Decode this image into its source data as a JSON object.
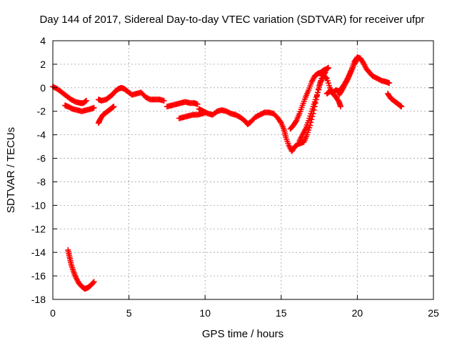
{
  "chart_data": {
    "type": "scatter",
    "title": "Day 144 of 2017, Sidereal Day-to-day VTEC variation (SDTVAR) for receiver ufpr",
    "xlabel": "GPS time / hours",
    "ylabel": "SDTVAR / TECUs",
    "xlim": [
      0,
      25
    ],
    "ylim": [
      -18,
      4
    ],
    "xticks": [
      0,
      5,
      10,
      15,
      20,
      25
    ],
    "yticks": [
      -18,
      -16,
      -14,
      -12,
      -10,
      -8,
      -6,
      -4,
      -2,
      0,
      2,
      4
    ],
    "grid": true,
    "marker": "+",
    "color": "#ff0000",
    "series": [
      {
        "name": "s1",
        "points": [
          [
            0.0,
            0.1
          ],
          [
            0.3,
            -0.1
          ],
          [
            0.6,
            -0.4
          ],
          [
            0.9,
            -0.7
          ],
          [
            1.2,
            -1.0
          ],
          [
            1.5,
            -1.2
          ],
          [
            1.8,
            -1.3
          ],
          [
            2.0,
            -1.3
          ],
          [
            2.2,
            -1.1
          ]
        ]
      },
      {
        "name": "s2",
        "points": [
          [
            0.8,
            -1.5
          ],
          [
            1.0,
            -1.6
          ],
          [
            1.3,
            -1.8
          ],
          [
            1.6,
            -1.9
          ],
          [
            1.9,
            -2.0
          ],
          [
            2.2,
            -1.9
          ],
          [
            2.5,
            -1.8
          ],
          [
            2.7,
            -1.7
          ]
        ]
      },
      {
        "name": "s3",
        "points": [
          [
            1.0,
            -13.8
          ],
          [
            1.1,
            -14.4
          ],
          [
            1.2,
            -15.0
          ],
          [
            1.35,
            -15.6
          ],
          [
            1.5,
            -16.1
          ],
          [
            1.7,
            -16.6
          ],
          [
            1.9,
            -16.9
          ],
          [
            2.1,
            -17.1
          ],
          [
            2.3,
            -17.0
          ],
          [
            2.5,
            -16.8
          ],
          [
            2.7,
            -16.5
          ]
        ]
      },
      {
        "name": "s4",
        "points": [
          [
            3.0,
            -3.0
          ],
          [
            3.1,
            -2.7
          ],
          [
            3.3,
            -2.3
          ],
          [
            3.5,
            -2.1
          ],
          [
            3.7,
            -1.9
          ],
          [
            3.9,
            -1.7
          ],
          [
            4.0,
            -1.6
          ]
        ]
      },
      {
        "name": "s5",
        "points": [
          [
            3.0,
            -1.0
          ],
          [
            3.2,
            -1.1
          ],
          [
            3.5,
            -1.0
          ],
          [
            3.7,
            -0.8
          ],
          [
            3.9,
            -0.6
          ],
          [
            4.1,
            -0.3
          ],
          [
            4.3,
            -0.1
          ],
          [
            4.5,
            0.0
          ],
          [
            4.7,
            -0.1
          ],
          [
            4.9,
            -0.3
          ],
          [
            5.2,
            -0.6
          ],
          [
            5.5,
            -0.5
          ],
          [
            5.8,
            -0.4
          ],
          [
            6.1,
            -0.8
          ],
          [
            6.4,
            -1.0
          ],
          [
            6.7,
            -1.0
          ],
          [
            7.0,
            -1.0
          ],
          [
            7.3,
            -1.1
          ]
        ]
      },
      {
        "name": "s6",
        "points": [
          [
            7.5,
            -1.6
          ],
          [
            7.8,
            -1.5
          ],
          [
            8.1,
            -1.4
          ],
          [
            8.4,
            -1.3
          ],
          [
            8.7,
            -1.2
          ],
          [
            9.0,
            -1.3
          ],
          [
            9.3,
            -1.3
          ],
          [
            9.5,
            -1.4
          ]
        ]
      },
      {
        "name": "s7",
        "points": [
          [
            8.3,
            -2.6
          ],
          [
            8.6,
            -2.5
          ],
          [
            8.9,
            -2.4
          ],
          [
            9.2,
            -2.3
          ],
          [
            9.5,
            -2.3
          ],
          [
            9.8,
            -2.2
          ],
          [
            10.0,
            -2.1
          ]
        ]
      },
      {
        "name": "s8",
        "points": [
          [
            9.6,
            -1.8
          ],
          [
            9.9,
            -2.0
          ],
          [
            10.2,
            -2.2
          ],
          [
            10.5,
            -2.3
          ],
          [
            10.8,
            -2.0
          ],
          [
            11.1,
            -1.9
          ],
          [
            11.4,
            -2.0
          ],
          [
            11.7,
            -2.2
          ],
          [
            12.0,
            -2.3
          ],
          [
            12.3,
            -2.5
          ],
          [
            12.6,
            -2.8
          ],
          [
            12.8,
            -3.1
          ],
          [
            13.0,
            -2.9
          ],
          [
            13.3,
            -2.5
          ],
          [
            13.6,
            -2.3
          ],
          [
            13.9,
            -2.1
          ],
          [
            14.2,
            -2.1
          ],
          [
            14.5,
            -2.2
          ],
          [
            14.8,
            -2.6
          ],
          [
            15.0,
            -3.0
          ],
          [
            15.2,
            -3.6
          ],
          [
            15.3,
            -4.2
          ],
          [
            15.5,
            -4.9
          ],
          [
            15.7,
            -5.4
          ],
          [
            15.9,
            -5.0
          ],
          [
            16.1,
            -4.8
          ],
          [
            16.3,
            -4.7
          ],
          [
            16.5,
            -4.6
          ],
          [
            16.7,
            -4.0
          ],
          [
            16.9,
            -3.2
          ],
          [
            17.1,
            -2.2
          ],
          [
            17.3,
            -1.0
          ],
          [
            17.5,
            0.2
          ],
          [
            17.7,
            1.0
          ],
          [
            17.9,
            1.3
          ]
        ]
      },
      {
        "name": "s9",
        "points": [
          [
            15.6,
            -3.5
          ],
          [
            15.8,
            -3.2
          ],
          [
            16.0,
            -2.8
          ],
          [
            16.2,
            -2.2
          ],
          [
            16.4,
            -1.5
          ],
          [
            16.6,
            -0.8
          ],
          [
            16.8,
            -0.2
          ],
          [
            17.0,
            0.5
          ],
          [
            17.2,
            1.0
          ],
          [
            17.4,
            1.2
          ],
          [
            17.6,
            1.3
          ],
          [
            17.8,
            1.5
          ],
          [
            18.0,
            1.6
          ],
          [
            18.1,
            1.7
          ]
        ]
      },
      {
        "name": "s10",
        "points": [
          [
            16.2,
            -4.5
          ],
          [
            16.4,
            -4.0
          ],
          [
            16.6,
            -3.5
          ],
          [
            16.8,
            -2.8
          ],
          [
            17.0,
            -2.0
          ],
          [
            17.2,
            -1.2
          ],
          [
            17.4,
            -0.4
          ],
          [
            17.6,
            0.5
          ],
          [
            17.8,
            1.0
          ],
          [
            18.0,
            0.8
          ],
          [
            18.2,
            0.0
          ],
          [
            18.4,
            -0.5
          ],
          [
            18.6,
            -0.8
          ],
          [
            18.8,
            -1.2
          ],
          [
            18.9,
            -1.6
          ]
        ]
      },
      {
        "name": "s11",
        "points": [
          [
            18.0,
            -0.5
          ],
          [
            18.2,
            -0.3
          ],
          [
            18.4,
            -0.4
          ],
          [
            18.6,
            -0.2
          ],
          [
            18.8,
            -0.3
          ],
          [
            19.0,
            0.0
          ],
          [
            19.2,
            0.4
          ],
          [
            19.4,
            0.9
          ],
          [
            19.6,
            1.5
          ],
          [
            19.8,
            2.2
          ],
          [
            20.0,
            2.6
          ],
          [
            20.2,
            2.5
          ],
          [
            20.4,
            2.1
          ],
          [
            20.6,
            1.6
          ],
          [
            20.8,
            1.3
          ],
          [
            21.0,
            1.0
          ],
          [
            21.3,
            0.8
          ],
          [
            21.6,
            0.6
          ],
          [
            21.9,
            0.5
          ],
          [
            22.1,
            0.4
          ]
        ]
      },
      {
        "name": "s12",
        "points": [
          [
            18.8,
            -0.6
          ],
          [
            19.0,
            -0.2
          ],
          [
            19.2,
            0.3
          ],
          [
            19.4,
            0.8
          ],
          [
            19.6,
            1.4
          ],
          [
            19.8,
            2.0
          ],
          [
            20.0,
            2.4
          ]
        ]
      },
      {
        "name": "s13",
        "points": [
          [
            22.0,
            -0.5
          ],
          [
            22.2,
            -0.9
          ],
          [
            22.4,
            -1.1
          ],
          [
            22.6,
            -1.3
          ],
          [
            22.8,
            -1.5
          ],
          [
            22.9,
            -1.6
          ]
        ]
      }
    ]
  }
}
